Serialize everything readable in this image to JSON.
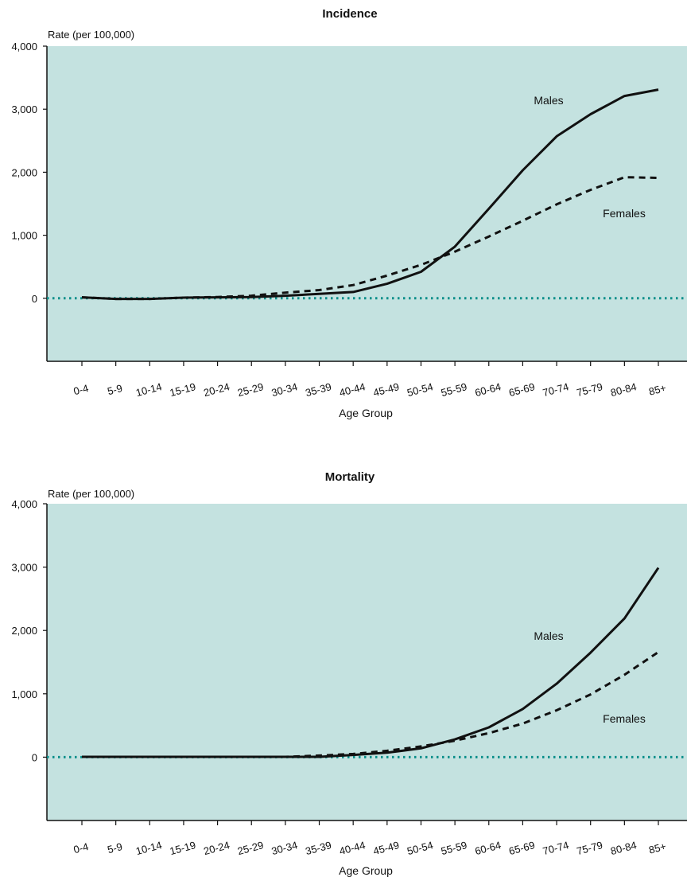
{
  "chart_data": [
    {
      "type": "line",
      "title": "Incidence",
      "ylabel": "Rate (per 100,000)",
      "xlabel": "Age Group",
      "ylim": [
        -1000,
        4000
      ],
      "yticks": [
        "4,000",
        "3,000",
        "2,000",
        "1,000",
        "0"
      ],
      "grid": false,
      "categories": [
        "0-4",
        "5-9",
        "10-14",
        "15-19",
        "20-24",
        "25-29",
        "30-34",
        "35-39",
        "40-44",
        "45-49",
        "50-54",
        "55-59",
        "60-64",
        "65-69",
        "70-74",
        "75-79",
        "80-84",
        "85+"
      ],
      "series": [
        {
          "name": "Males",
          "style": "solid",
          "color": "#111111",
          "values": [
            15,
            -10,
            -10,
            10,
            15,
            20,
            40,
            70,
            100,
            230,
            420,
            820,
            1420,
            2030,
            2570,
            2920,
            3210,
            3310
          ]
        },
        {
          "name": "Females",
          "style": "dashed",
          "color": "#111111",
          "values": [
            15,
            -10,
            -10,
            10,
            20,
            40,
            90,
            130,
            210,
            360,
            530,
            740,
            980,
            1230,
            1490,
            1720,
            1920,
            1910
          ]
        }
      ],
      "baseline": {
        "y": 0,
        "color": "#0a8f8a",
        "style": "dotted"
      },
      "plot_background": "#c4e2e0"
    },
    {
      "type": "line",
      "title": "Mortality",
      "ylabel": "Rate (per 100,000)",
      "xlabel": "Age Group",
      "ylim": [
        -1000,
        4000
      ],
      "yticks": [
        "4,000",
        "3,000",
        "2,000",
        "1,000",
        "0"
      ],
      "grid": false,
      "categories": [
        "0-4",
        "5-9",
        "10-14",
        "15-19",
        "20-24",
        "25-29",
        "30-34",
        "35-39",
        "40-44",
        "45-49",
        "50-54",
        "55-59",
        "60-64",
        "65-69",
        "70-74",
        "75-79",
        "80-84",
        "85+"
      ],
      "series": [
        {
          "name": "Males",
          "style": "solid",
          "color": "#111111",
          "values": [
            5,
            5,
            5,
            5,
            5,
            5,
            5,
            5,
            35,
            70,
            140,
            280,
            470,
            760,
            1160,
            1650,
            2190,
            2990
          ]
        },
        {
          "name": "Females",
          "style": "dashed",
          "color": "#111111",
          "values": [
            5,
            5,
            5,
            5,
            5,
            5,
            5,
            25,
            50,
            100,
            170,
            260,
            380,
            530,
            740,
            990,
            1300,
            1660
          ]
        }
      ],
      "baseline": {
        "y": 0,
        "color": "#0a8f8a",
        "style": "dotted"
      },
      "plot_background": "#c4e2e0"
    }
  ]
}
